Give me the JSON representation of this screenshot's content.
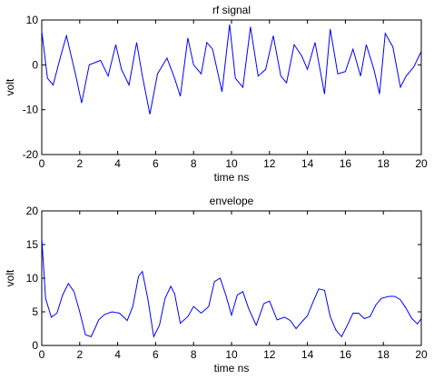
{
  "chart_data": [
    {
      "type": "line",
      "title": "rf signal",
      "xlabel": "time ns",
      "ylabel": "volt",
      "xlim": [
        0,
        20
      ],
      "ylim": [
        -20,
        10
      ],
      "xticks": [
        "0",
        "2",
        "4",
        "6",
        "8",
        "10",
        "12",
        "14",
        "16",
        "18",
        "20"
      ],
      "yticks": [
        "-20",
        "-10",
        "0",
        "10"
      ],
      "grid": false,
      "color": "#0000ff",
      "x": [
        0,
        0.3,
        0.6,
        1.0,
        1.3,
        1.8,
        2.1,
        2.5,
        2.8,
        3.1,
        3.5,
        3.9,
        4.2,
        4.6,
        5.0,
        5.3,
        5.7,
        6.1,
        6.6,
        7.0,
        7.3,
        7.7,
        8.0,
        8.4,
        8.7,
        9.0,
        9.5,
        9.9,
        10.2,
        10.6,
        11.0,
        11.4,
        11.8,
        12.2,
        12.6,
        12.9,
        13.3,
        13.7,
        14.0,
        14.4,
        14.9,
        15.2,
        15.6,
        16.0,
        16.4,
        16.8,
        17.1,
        17.5,
        17.8,
        18.1,
        18.5,
        18.9,
        19.2,
        19.6,
        20.0
      ],
      "y": [
        7.5,
        -3,
        -4.5,
        2,
        6.5,
        -2.5,
        -8.5,
        0,
        0.5,
        1,
        -2.5,
        4.5,
        -1,
        -4.5,
        5,
        -2.5,
        -11,
        -2,
        1.5,
        -3,
        -7,
        6,
        0,
        -2,
        5,
        3.5,
        -6,
        9,
        -3,
        -5,
        8.5,
        -2.5,
        -1,
        6.5,
        -2.5,
        -4,
        4.5,
        2,
        -1,
        5,
        -6.5,
        8,
        -2,
        -1.5,
        3.5,
        -2.5,
        4.5,
        -1,
        -6.5,
        7,
        4,
        -5,
        -2.5,
        -0.5,
        3
      ]
    },
    {
      "type": "line",
      "title": "envelope",
      "xlabel": "time ns",
      "ylabel": "volt",
      "xlim": [
        0,
        20
      ],
      "ylim": [
        0,
        20
      ],
      "xticks": [
        "0",
        "2",
        "4",
        "6",
        "8",
        "10",
        "12",
        "14",
        "16",
        "18",
        "20"
      ],
      "yticks": [
        "0",
        "5",
        "10",
        "15",
        "20"
      ],
      "grid": false,
      "color": "#0000ff",
      "x": [
        0,
        0.2,
        0.5,
        0.8,
        1.1,
        1.4,
        1.7,
        2.0,
        2.3,
        2.6,
        2.8,
        3.0,
        3.3,
        3.7,
        4.1,
        4.5,
        4.8,
        5.1,
        5.3,
        5.6,
        5.9,
        6.2,
        6.5,
        6.8,
        7.0,
        7.3,
        7.7,
        8.0,
        8.4,
        8.8,
        9.1,
        9.4,
        9.7,
        10.0,
        10.3,
        10.6,
        10.9,
        11.3,
        11.7,
        12.0,
        12.4,
        12.8,
        13.1,
        13.4,
        13.7,
        14.0,
        14.3,
        14.6,
        14.9,
        15.2,
        15.5,
        15.8,
        16.1,
        16.4,
        16.7,
        17.0,
        17.3,
        17.6,
        17.9,
        18.3,
        18.6,
        18.9,
        19.2,
        19.5,
        19.8,
        20.0
      ],
      "y": [
        16,
        7,
        4.2,
        4.8,
        7.5,
        9.2,
        8.0,
        5.0,
        1.6,
        1.3,
        2.5,
        3.8,
        4.6,
        5.0,
        4.8,
        3.7,
        5.8,
        10.3,
        11.0,
        6.8,
        1.3,
        3.0,
        7.0,
        8.8,
        7.7,
        3.3,
        4.3,
        5.8,
        4.8,
        5.8,
        9.5,
        10.0,
        7.5,
        4.5,
        7.5,
        8.0,
        5.5,
        3.0,
        6.2,
        6.6,
        3.8,
        4.2,
        3.7,
        2.5,
        3.5,
        4.4,
        6.5,
        8.4,
        8.2,
        4.3,
        2.3,
        1.3,
        3.0,
        4.8,
        4.8,
        4.0,
        4.3,
        6.0,
        7.0,
        7.3,
        7.3,
        6.8,
        5.5,
        4.0,
        3.2,
        4.0
      ]
    }
  ]
}
